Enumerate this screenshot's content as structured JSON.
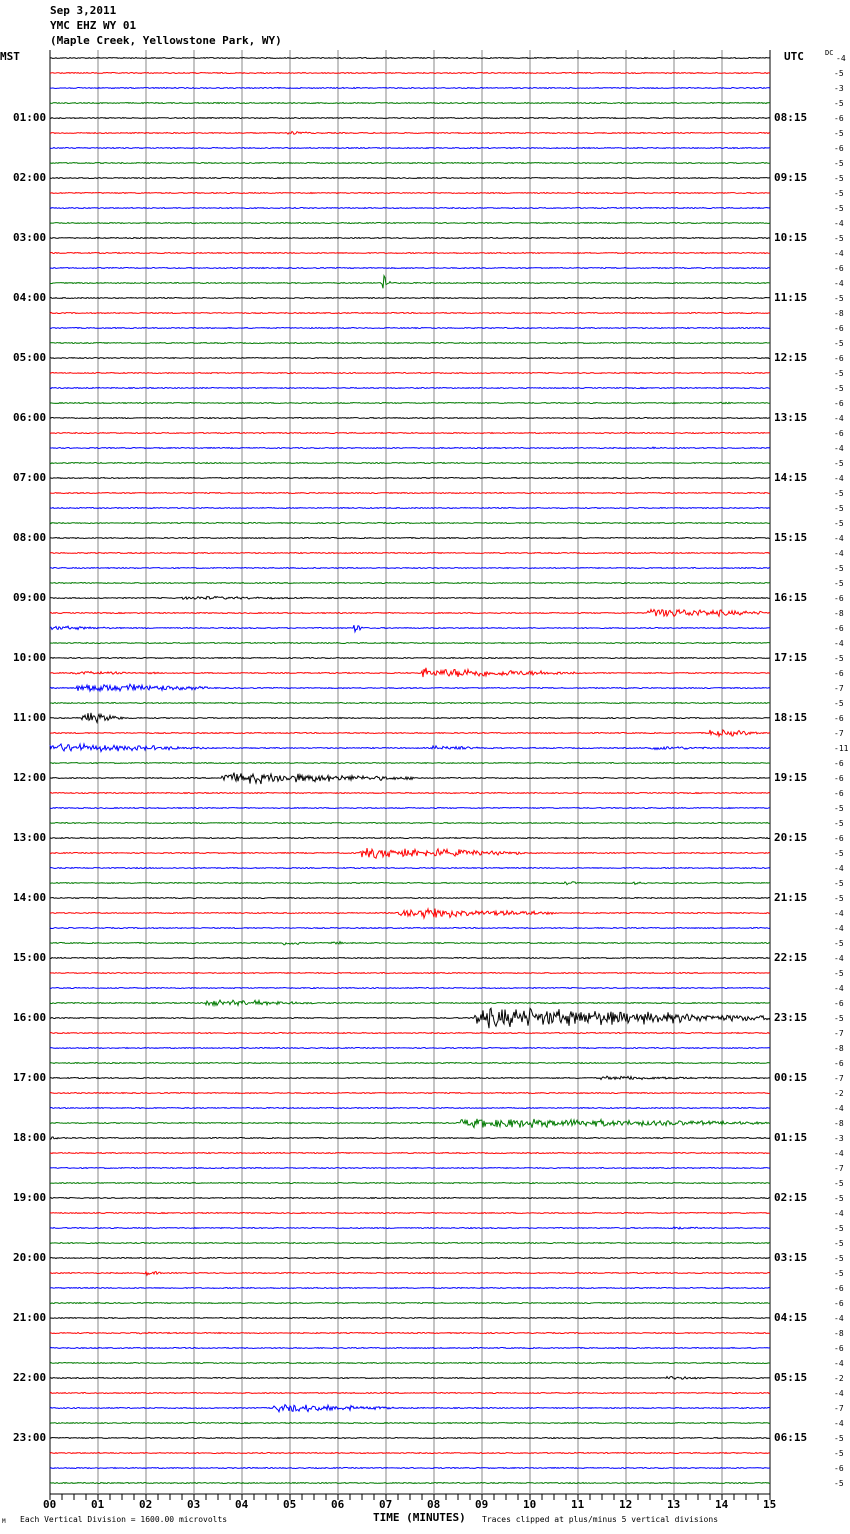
{
  "header": {
    "date": "Sep 3,2011",
    "station": "YMC EHZ WY 01",
    "location": "(Maple Creek, Yellowstone Park, WY)"
  },
  "left_axis_title": "MST",
  "right_axis_title": "UTC",
  "dc_title": "DC",
  "footer": {
    "scale_note": "Each Vertical Division = 1600.00 microvolts",
    "xlabel": "TIME (MINUTES)",
    "clip_note": "Traces clipped at plus/minus 5 vertical divisions",
    "corner_mark": "M"
  },
  "chart_data": {
    "type": "line",
    "title": "YMC EHZ WY 01 helicorder, Sep 3,2011",
    "xlabel": "TIME (MINUTES)",
    "xlim": [
      0,
      15
    ],
    "x_ticks": [
      "00",
      "01",
      "02",
      "03",
      "04",
      "05",
      "06",
      "07",
      "08",
      "09",
      "10",
      "11",
      "12",
      "13",
      "14",
      "15"
    ],
    "trace_colors": [
      "#000000",
      "#ff0000",
      "#0000ff",
      "#007a00"
    ],
    "mst_labels": [
      "01:00",
      "02:00",
      "03:00",
      "04:00",
      "05:00",
      "06:00",
      "07:00",
      "08:00",
      "09:00",
      "10:00",
      "11:00",
      "12:00",
      "13:00",
      "14:00",
      "15:00",
      "16:00",
      "17:00",
      "18:00",
      "19:00",
      "20:00",
      "21:00",
      "22:00",
      "23:00"
    ],
    "utc_labels": [
      "08:15",
      "09:15",
      "10:15",
      "11:15",
      "12:15",
      "13:15",
      "14:15",
      "15:15",
      "16:15",
      "17:15",
      "18:15",
      "19:15",
      "20:15",
      "21:15",
      "22:15",
      "23:15",
      "00:15",
      "01:15",
      "02:15",
      "03:15",
      "04:15",
      "05:15",
      "06:15"
    ],
    "dc_offsets": [
      -4,
      -5,
      -3,
      -5,
      -6,
      -5,
      -6,
      -5,
      -5,
      -5,
      -5,
      -4,
      -5,
      -4,
      -6,
      -4,
      -5,
      -8,
      -6,
      -5,
      -6,
      -5,
      -5,
      -6,
      -4,
      -6,
      -4,
      -5,
      -4,
      -5,
      -5,
      -5,
      -4,
      -4,
      -5,
      -5,
      -6,
      -8,
      -6,
      -4,
      -5,
      -6,
      -7,
      -5,
      -6,
      -7,
      -11,
      -6,
      -6,
      -6,
      -5,
      -5,
      -6,
      -5,
      -4,
      -5,
      -5,
      -4,
      -4,
      -5,
      -4,
      -5,
      -4,
      -6,
      -5,
      -7,
      -8,
      -6,
      -7,
      -2,
      -4,
      -8,
      -3,
      -4,
      -7,
      -5,
      -5,
      -4,
      -5,
      -5,
      -5,
      -5,
      -6,
      -6,
      -4,
      -8,
      -6,
      -4,
      -2,
      -4,
      -7,
      -4,
      -5,
      -5,
      -6,
      -5
    ],
    "trace_count": 96,
    "events": [
      {
        "trace": 5,
        "start": 5.0,
        "end": 5.5,
        "amp": 1.5
      },
      {
        "trace": 15,
        "start": 6.95,
        "end": 7.05,
        "amp": 10
      },
      {
        "trace": 23,
        "start": 14.0,
        "end": 14.3,
        "amp": 1
      },
      {
        "trace": 26,
        "start": 12.5,
        "end": 12.8,
        "amp": 0.8
      },
      {
        "trace": 36,
        "start": 2.8,
        "end": 5.5,
        "amp": 1.2
      },
      {
        "trace": 37,
        "start": 12.5,
        "end": 15,
        "amp": 3.5
      },
      {
        "trace": 38,
        "start": 0,
        "end": 1.5,
        "amp": 1.5
      },
      {
        "trace": 38,
        "start": 6.38,
        "end": 6.45,
        "amp": 5
      },
      {
        "trace": 41,
        "start": 0.5,
        "end": 3,
        "amp": 1
      },
      {
        "trace": 41,
        "start": 7.8,
        "end": 11,
        "amp": 3.5
      },
      {
        "trace": 42,
        "start": 0.6,
        "end": 3.3,
        "amp": 3.5
      },
      {
        "trace": 44,
        "start": 0.7,
        "end": 1.5,
        "amp": 4
      },
      {
        "trace": 45,
        "start": 13.8,
        "end": 15,
        "amp": 2.5
      },
      {
        "trace": 46,
        "start": 0,
        "end": 3.2,
        "amp": 3
      },
      {
        "trace": 46,
        "start": 8,
        "end": 9.5,
        "amp": 1.5
      },
      {
        "trace": 46,
        "start": 12.5,
        "end": 14,
        "amp": 1.5
      },
      {
        "trace": 48,
        "start": 3.6,
        "end": 7.6,
        "amp": 4
      },
      {
        "trace": 53,
        "start": 6.5,
        "end": 9.8,
        "amp": 4
      },
      {
        "trace": 55,
        "start": 10.7,
        "end": 11.1,
        "amp": 1.5
      },
      {
        "trace": 55,
        "start": 12.2,
        "end": 12.5,
        "amp": 1.2
      },
      {
        "trace": 57,
        "start": 7.3,
        "end": 10.5,
        "amp": 4
      },
      {
        "trace": 59,
        "start": 4.9,
        "end": 5.3,
        "amp": 2
      },
      {
        "trace": 59,
        "start": 5.9,
        "end": 6.1,
        "amp": 2
      },
      {
        "trace": 63,
        "start": 3.3,
        "end": 5.5,
        "amp": 2.5
      },
      {
        "trace": 64,
        "start": 8.9,
        "end": 15,
        "amp": 7
      },
      {
        "trace": 68,
        "start": 11.5,
        "end": 14.2,
        "amp": 1.5
      },
      {
        "trace": 71,
        "start": 8.6,
        "end": 15,
        "amp": 3.5
      },
      {
        "trace": 72,
        "start": 0,
        "end": 0.4,
        "amp": 1
      },
      {
        "trace": 78,
        "start": 13,
        "end": 13.8,
        "amp": 1
      },
      {
        "trace": 81,
        "start": 2.0,
        "end": 2.4,
        "amp": 1.5
      },
      {
        "trace": 85,
        "start": 1.9,
        "end": 2.7,
        "amp": 1
      },
      {
        "trace": 88,
        "start": 12.9,
        "end": 14,
        "amp": 1.2
      },
      {
        "trace": 90,
        "start": 4.7,
        "end": 7.1,
        "amp": 3
      }
    ]
  }
}
